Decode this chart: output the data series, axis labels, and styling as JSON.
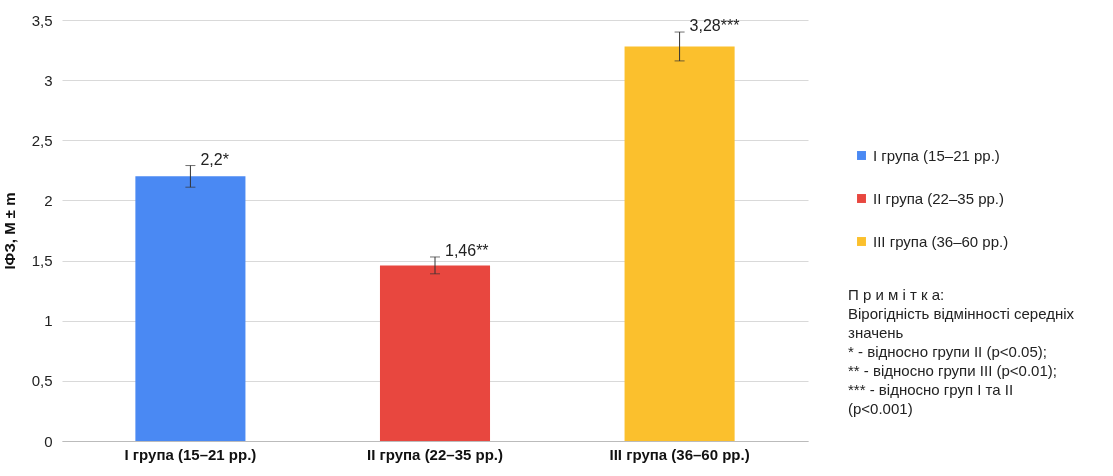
{
  "chart_data": {
    "type": "bar",
    "ylabel": "ІФЗ, М ± m",
    "categories": [
      "І група (15–21 рр.)",
      "ІІ група (22–35 рр.)",
      "ІІІ група (36–60 рр.)"
    ],
    "series": [
      {
        "name": "І група (15–21 рр.)",
        "color": "#4a89f3",
        "values": [
          2.2,
          null,
          null
        ],
        "errors": [
          0.09,
          null,
          null
        ],
        "value_labels": [
          "2,2*",
          null,
          null
        ]
      },
      {
        "name": "ІІ група (22–35 рр.)",
        "color": "#e8473f",
        "values": [
          null,
          1.46,
          null
        ],
        "errors": [
          null,
          0.07,
          null
        ],
        "value_labels": [
          null,
          "1,46**",
          null
        ]
      },
      {
        "name": "ІІІ група (36–60 рр.)",
        "color": "#fbc02d",
        "values": [
          null,
          null,
          3.28
        ],
        "errors": [
          null,
          null,
          0.12
        ],
        "value_labels": [
          null,
          null,
          "3,28***"
        ]
      }
    ],
    "ylim": [
      0,
      3.5
    ],
    "yticks": [
      {
        "value": 0,
        "label": "0"
      },
      {
        "value": 0.5,
        "label": "0,5"
      },
      {
        "value": 1,
        "label": "1"
      },
      {
        "value": 1.5,
        "label": "1,5"
      },
      {
        "value": 2,
        "label": "2"
      },
      {
        "value": 2.5,
        "label": "2,5"
      },
      {
        "value": 3,
        "label": "3"
      },
      {
        "value": 3.5,
        "label": "3,5"
      }
    ],
    "grid": "y",
    "legend": "right",
    "annotations": [
      "П р и м і т к а:",
      "Вірогідність відмінності середніх значень",
      "* - відносно групи ІІ (p<0.05);",
      "** - відносно групи ІІІ (p<0.01);",
      "*** - відносно груп І та ІІ (p<0.001)"
    ]
  }
}
